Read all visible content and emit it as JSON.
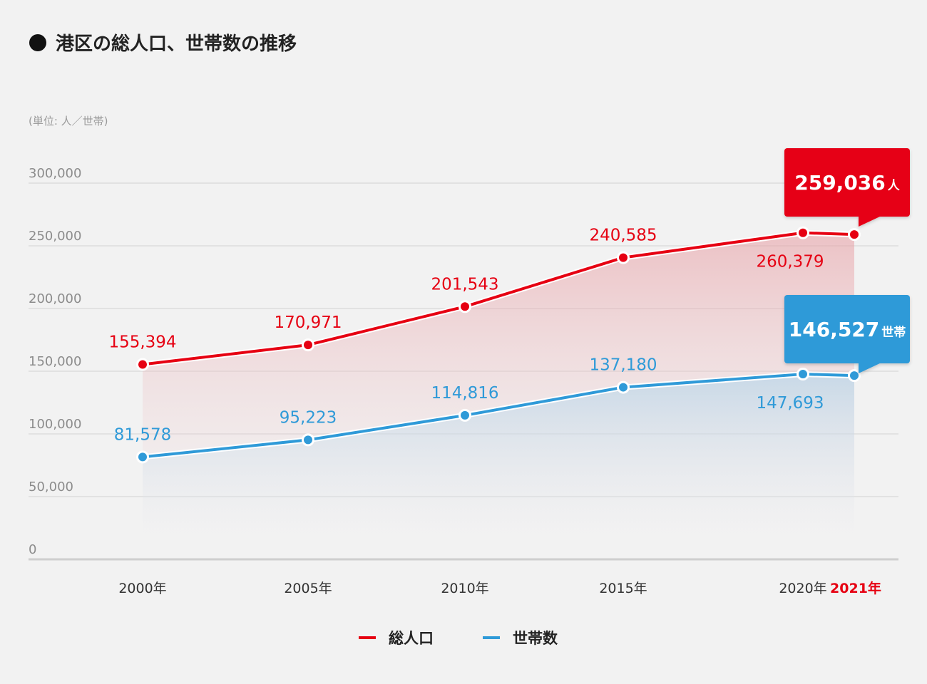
{
  "chart_data": {
    "type": "area",
    "title": "港区の総人口、世帯数の推移",
    "unit_note": "(単位: 人／世帯)",
    "categories": [
      "2000年",
      "2005年",
      "2010年",
      "2015年",
      "2020年",
      "2021年"
    ],
    "highlight_category": "2021年",
    "ylim": [
      0,
      300000
    ],
    "y_ticks": [
      {
        "value": 0,
        "label": "0"
      },
      {
        "value": 50000,
        "label": "50,000"
      },
      {
        "value": 100000,
        "label": "100,000"
      },
      {
        "value": 150000,
        "label": "150,000"
      },
      {
        "value": 200000,
        "label": "200,000"
      },
      {
        "value": 250000,
        "label": "250,000"
      },
      {
        "value": 300000,
        "label": "300,000"
      }
    ],
    "grid": true,
    "legend_position": "bottom-center",
    "series": [
      {
        "name": "総人口",
        "color": "#e60012",
        "values": [
          155394,
          170971,
          201543,
          240585,
          260379,
          259036
        ],
        "data_labels": [
          "155,394",
          "170,971",
          "201,543",
          "240,585",
          "260,379",
          ""
        ],
        "callout": {
          "number": "259,036",
          "unit": "人"
        }
      },
      {
        "name": "世帯数",
        "color": "#2f9ad8",
        "values": [
          81578,
          95223,
          114816,
          137180,
          147693,
          146527
        ],
        "data_labels": [
          "81,578",
          "95,223",
          "114,816",
          "137,180",
          "147,693",
          ""
        ],
        "callout": {
          "number": "146,527",
          "unit": "世帯"
        }
      }
    ]
  }
}
